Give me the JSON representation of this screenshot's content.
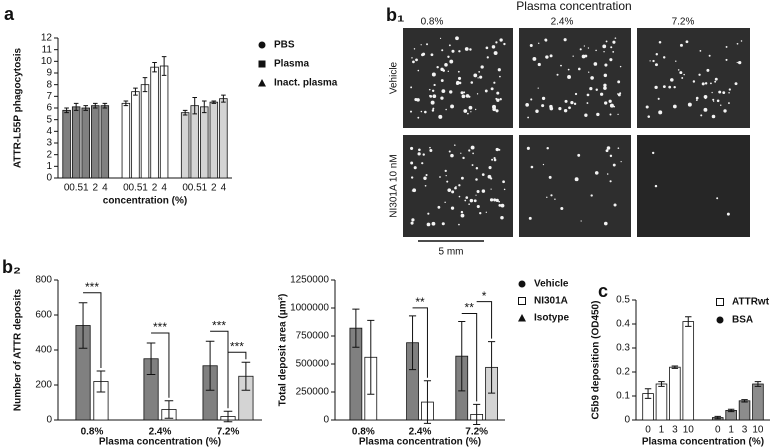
{
  "chart_data": [
    {
      "type": "bar",
      "panel": "a",
      "ylabel": "ATTR-L55P phagocytosis",
      "xlabel": "concentration (%)",
      "categories": [
        "0",
        "0.5",
        "1",
        "2",
        "4"
      ],
      "series": [
        {
          "name": "PBS",
          "color": "#808080",
          "marker": "circle",
          "values": [
            5.8,
            6.1,
            6.0,
            6.2,
            6.2
          ],
          "errors": [
            0.2,
            0.3,
            0.2,
            0.2,
            0.2
          ]
        },
        {
          "name": "Plasma",
          "color": "#ffffff",
          "marker": "square",
          "values": [
            6.4,
            7.4,
            8.0,
            9.5,
            9.6
          ],
          "errors": [
            0.2,
            0.3,
            0.6,
            0.4,
            0.8
          ]
        },
        {
          "name": "Inact. plasma",
          "color": "#d4d4d4",
          "marker": "triangle",
          "values": [
            5.6,
            6.2,
            6.1,
            6.5,
            6.8
          ],
          "errors": [
            0.2,
            0.7,
            0.5,
            0.1,
            0.3
          ]
        }
      ],
      "ylim": [
        0,
        12
      ],
      "yticks": [
        0,
        1,
        2,
        3,
        4,
        5,
        6,
        7,
        8,
        9,
        10,
        11,
        12
      ]
    },
    {
      "type": "bar",
      "panel": "b₂",
      "ylabel": "Number of ATTR deposits",
      "xlabel": "Plasma concentration (%)",
      "categories": [
        "0.8%",
        "2.4%",
        "7.2%"
      ],
      "series": [
        {
          "name": "Vehicle",
          "color": "#808080",
          "marker": "circle",
          "values": [
            540,
            350,
            310
          ],
          "errors": [
            130,
            90,
            140
          ]
        },
        {
          "name": "NI301A",
          "color": "#ffffff",
          "marker": "open-square",
          "values": [
            220,
            60,
            20
          ],
          "errors": [
            60,
            50,
            30
          ]
        },
        {
          "name": "Isotype",
          "color": "#d4d4d4",
          "marker": "triangle",
          "values": [
            null,
            null,
            250
          ],
          "errors": [
            null,
            null,
            80
          ]
        }
      ],
      "annotations": [
        "***",
        "***",
        "***",
        "***"
      ],
      "ylim": [
        0,
        800
      ],
      "yticks": [
        0,
        200,
        400,
        600,
        800
      ]
    },
    {
      "type": "bar",
      "ylabel": "Total deposit area (μm²)",
      "xlabel": "Plasma concentration (%)",
      "categories": [
        "0.8%",
        "2.4%",
        "7.2%"
      ],
      "series": [
        {
          "name": "Vehicle",
          "color": "#808080",
          "marker": "circle",
          "values": [
            820000,
            690000,
            570000
          ],
          "errors": [
            170000,
            240000,
            310000
          ]
        },
        {
          "name": "NI301A",
          "color": "#ffffff",
          "marker": "open-square",
          "values": [
            560000,
            160000,
            50000
          ],
          "errors": [
            330000,
            190000,
            90000
          ]
        },
        {
          "name": "Isotype",
          "color": "#d4d4d4",
          "marker": "triangle",
          "values": [
            null,
            null,
            470000
          ],
          "errors": [
            null,
            null,
            230000
          ]
        }
      ],
      "annotations": [
        "**",
        "**",
        "*"
      ],
      "ylim": [
        0,
        1250000
      ],
      "yticks": [
        0,
        250000,
        500000,
        750000,
        1000000,
        1250000
      ]
    },
    {
      "type": "bar",
      "panel": "c",
      "ylabel": "C5b9 deposition (OD450)",
      "xlabel": "Plasma concentration (%)",
      "categories": [
        "0",
        "1",
        "3",
        "10"
      ],
      "series": [
        {
          "name": "ATTRwt",
          "color": "#ffffff",
          "marker": "open-square",
          "values": [
            0.11,
            0.15,
            0.22,
            0.41
          ],
          "errors": [
            0.02,
            0.01,
            0.005,
            0.02
          ]
        },
        {
          "name": "BSA",
          "color": "#8c8c8c",
          "marker": "circle",
          "values": [
            0.01,
            0.04,
            0.08,
            0.15
          ],
          "errors": [
            0.005,
            0.005,
            0.005,
            0.01
          ]
        }
      ],
      "ylim": [
        0,
        0.5
      ],
      "yticks": [
        0,
        0.1,
        0.2,
        0.3,
        0.4,
        0.5
      ]
    }
  ],
  "image_panel": {
    "panel": "b₁",
    "title": "Plasma concentration",
    "columns": [
      "0.8%",
      "2.4%",
      "7.2%"
    ],
    "rows": [
      "Vehicle",
      "NI301A 10 nM"
    ],
    "scale": "5 mm"
  }
}
